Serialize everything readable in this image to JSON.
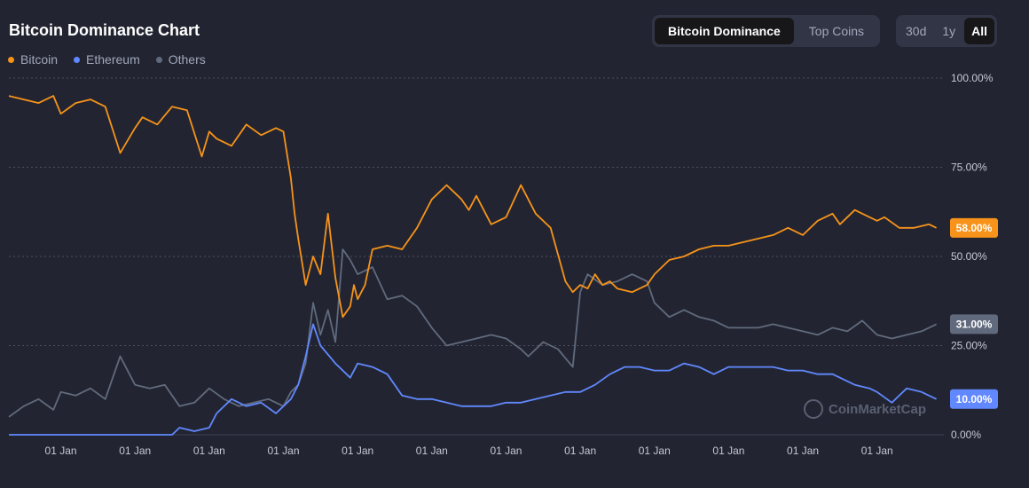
{
  "header": {
    "title": "Bitcoin Dominance Chart"
  },
  "tabs": {
    "view": [
      {
        "label": "Bitcoin Dominance",
        "active": true
      },
      {
        "label": "Top Coins",
        "active": false
      }
    ],
    "range": [
      {
        "label": "30d",
        "active": false
      },
      {
        "label": "1y",
        "active": false
      },
      {
        "label": "All",
        "active": true
      }
    ]
  },
  "watermark": {
    "text": "CoinMarketCap",
    "icon": "coinmarketcap-logo-icon"
  },
  "colors": {
    "bitcoin": "#f7931a",
    "ethereum": "#6188ff",
    "others": "#616a7d",
    "background": "#222531"
  },
  "chart_data": {
    "type": "line",
    "title": "Bitcoin Dominance Chart",
    "legend_position": "top-left",
    "grid": true,
    "y_axis_side": "right",
    "ylim": [
      0,
      100
    ],
    "y_ticks": [
      "0.00%",
      "25.00%",
      "50.00%",
      "75.00%",
      "100.00%"
    ],
    "y_tick_values": [
      0,
      25,
      50,
      75,
      100
    ],
    "x_ticks": [
      "01 Jan",
      "01 Jan",
      "01 Jan",
      "01 Jan",
      "01 Jan",
      "01 Jan",
      "01 Jan",
      "01 Jan",
      "01 Jan",
      "01 Jan",
      "01 Jan",
      "01 Jan"
    ],
    "x_tick_values": [
      2014,
      2015,
      2016,
      2017,
      2018,
      2019,
      2020,
      2021,
      2022,
      2023,
      2024,
      2025
    ],
    "x_range": [
      2013.3,
      2025.9
    ],
    "series": [
      {
        "name": "Bitcoin",
        "current_label": "58.00%",
        "color": "#f7931a",
        "x": [
          2013.3,
          2013.5,
          2013.7,
          2013.9,
          2014.0,
          2014.2,
          2014.4,
          2014.6,
          2014.8,
          2015.0,
          2015.1,
          2015.3,
          2015.5,
          2015.7,
          2015.9,
          2016.0,
          2016.1,
          2016.3,
          2016.5,
          2016.7,
          2016.9,
          2017.0,
          2017.1,
          2017.15,
          2017.2,
          2017.3,
          2017.4,
          2017.5,
          2017.6,
          2017.7,
          2017.8,
          2017.9,
          2017.95,
          2018.0,
          2018.1,
          2018.2,
          2018.4,
          2018.6,
          2018.8,
          2019.0,
          2019.2,
          2019.4,
          2019.5,
          2019.6,
          2019.8,
          2020.0,
          2020.2,
          2020.4,
          2020.6,
          2020.8,
          2020.9,
          2021.0,
          2021.1,
          2021.2,
          2021.3,
          2021.4,
          2021.5,
          2021.7,
          2021.9,
          2022.0,
          2022.2,
          2022.4,
          2022.6,
          2022.8,
          2023.0,
          2023.2,
          2023.4,
          2023.6,
          2023.8,
          2024.0,
          2024.2,
          2024.4,
          2024.5,
          2024.7,
          2024.9,
          2025.0,
          2025.1,
          2025.3,
          2025.5,
          2025.7,
          2025.8
        ],
        "values": [
          95,
          94,
          93,
          95,
          90,
          93,
          94,
          92,
          79,
          86,
          89,
          87,
          92,
          91,
          78,
          85,
          83,
          81,
          87,
          84,
          86,
          85,
          72,
          62,
          55,
          42,
          50,
          45,
          62,
          44,
          33,
          36,
          42,
          38,
          42,
          52,
          53,
          52,
          58,
          66,
          70,
          66,
          63,
          67,
          59,
          61,
          70,
          62,
          58,
          43,
          40,
          42,
          41,
          45,
          42,
          43,
          41,
          40,
          42,
          45,
          49,
          50,
          52,
          53,
          53,
          54,
          55,
          56,
          58,
          56,
          60,
          62,
          59,
          63,
          61,
          60,
          61,
          58,
          58,
          59,
          58
        ]
      },
      {
        "name": "Ethereum",
        "current_label": "10.00%",
        "color": "#6188ff",
        "x": [
          2013.3,
          2015.5,
          2015.6,
          2015.8,
          2016.0,
          2016.1,
          2016.3,
          2016.5,
          2016.7,
          2016.9,
          2017.0,
          2017.1,
          2017.2,
          2017.3,
          2017.4,
          2017.5,
          2017.7,
          2017.9,
          2018.0,
          2018.2,
          2018.4,
          2018.6,
          2018.8,
          2019.0,
          2019.2,
          2019.4,
          2019.6,
          2019.8,
          2020.0,
          2020.2,
          2020.4,
          2020.6,
          2020.8,
          2021.0,
          2021.2,
          2021.4,
          2021.6,
          2021.8,
          2022.0,
          2022.2,
          2022.4,
          2022.6,
          2022.8,
          2023.0,
          2023.2,
          2023.4,
          2023.6,
          2023.8,
          2024.0,
          2024.2,
          2024.4,
          2024.5,
          2024.7,
          2024.9,
          2025.0,
          2025.2,
          2025.4,
          2025.6,
          2025.8
        ],
        "values": [
          0,
          0,
          2,
          1,
          2,
          6,
          10,
          8,
          9,
          6,
          8,
          10,
          14,
          22,
          31,
          25,
          20,
          16,
          20,
          19,
          17,
          11,
          10,
          10,
          9,
          8,
          8,
          8,
          9,
          9,
          10,
          11,
          12,
          12,
          14,
          17,
          19,
          19,
          18,
          18,
          20,
          19,
          17,
          19,
          19,
          19,
          19,
          18,
          18,
          17,
          17,
          16,
          14,
          13,
          12,
          9,
          13,
          12,
          10
        ]
      },
      {
        "name": "Others",
        "current_label": "31.00%",
        "color": "#616a7d",
        "x": [
          2013.3,
          2013.5,
          2013.7,
          2013.9,
          2014.0,
          2014.2,
          2014.4,
          2014.6,
          2014.8,
          2015.0,
          2015.2,
          2015.4,
          2015.6,
          2015.8,
          2016.0,
          2016.2,
          2016.4,
          2016.6,
          2016.8,
          2017.0,
          2017.1,
          2017.2,
          2017.3,
          2017.4,
          2017.5,
          2017.6,
          2017.7,
          2017.8,
          2017.9,
          2018.0,
          2018.2,
          2018.4,
          2018.6,
          2018.8,
          2019.0,
          2019.2,
          2019.4,
          2019.6,
          2019.8,
          2020.0,
          2020.2,
          2020.3,
          2020.5,
          2020.7,
          2020.9,
          2021.0,
          2021.1,
          2021.3,
          2021.5,
          2021.7,
          2021.9,
          2022.0,
          2022.2,
          2022.4,
          2022.6,
          2022.8,
          2023.0,
          2023.2,
          2023.4,
          2023.6,
          2023.8,
          2024.0,
          2024.2,
          2024.4,
          2024.6,
          2024.8,
          2025.0,
          2025.2,
          2025.4,
          2025.6,
          2025.8
        ],
        "values": [
          5,
          8,
          10,
          7,
          12,
          11,
          13,
          10,
          22,
          14,
          13,
          14,
          8,
          9,
          13,
          10,
          8,
          9,
          10,
          8,
          12,
          14,
          20,
          37,
          28,
          35,
          26,
          52,
          49,
          45,
          47,
          38,
          39,
          36,
          30,
          25,
          26,
          27,
          28,
          27,
          24,
          22,
          26,
          24,
          19,
          40,
          45,
          42,
          43,
          45,
          43,
          37,
          33,
          35,
          33,
          32,
          30,
          30,
          30,
          31,
          30,
          29,
          28,
          30,
          29,
          32,
          28,
          27,
          28,
          29,
          31
        ]
      }
    ]
  }
}
